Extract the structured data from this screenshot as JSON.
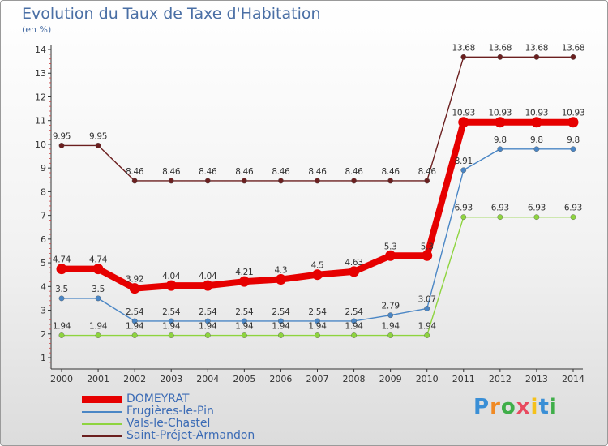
{
  "title": "Evolution du Taux de Taxe d'Habitation",
  "subtitle": "(en %)",
  "logo": {
    "letters": [
      "P",
      "r",
      "o",
      "x",
      "i",
      "t",
      "i"
    ],
    "colors": [
      "#3a8fd6",
      "#f08a24",
      "#3fae49",
      "#e84a5f",
      "#f5c11a",
      "#3a8fd6",
      "#3fae49"
    ]
  },
  "chart_data": {
    "type": "line",
    "title": "Evolution du Taux de Taxe d'Habitation",
    "ylabel": "(en %)",
    "x": [
      2000,
      2001,
      2002,
      2003,
      2004,
      2005,
      2006,
      2007,
      2008,
      2009,
      2010,
      2011,
      2012,
      2013,
      2014
    ],
    "ylim": [
      1,
      14
    ],
    "yticks": [
      1,
      2,
      3,
      4,
      5,
      6,
      7,
      8,
      9,
      10,
      11,
      12,
      13,
      14
    ],
    "grid": false,
    "legend": "bottom-left",
    "series": [
      {
        "name": "DOMEYRAT",
        "color": "#e60000",
        "emphasis": true,
        "values": [
          4.74,
          4.74,
          3.92,
          4.04,
          4.04,
          4.21,
          4.3,
          4.5,
          4.63,
          5.3,
          5.3,
          10.93,
          10.93,
          10.93,
          10.93
        ],
        "labels": [
          "4.74",
          "4.74",
          "3.92",
          "4.04",
          "4.04",
          "4.21",
          "4.3",
          "4.5",
          "4.63",
          "5.3",
          "5.3",
          "10.93",
          "10.93",
          "10.93",
          "10.93"
        ]
      },
      {
        "name": "Frugières-le-Pin",
        "color": "#4a86c5",
        "emphasis": false,
        "values": [
          3.5,
          3.5,
          2.54,
          2.54,
          2.54,
          2.54,
          2.54,
          2.54,
          2.54,
          2.79,
          3.07,
          8.91,
          9.8,
          9.8,
          9.8
        ],
        "labels": [
          "3.5",
          "3.5",
          "2.54",
          "2.54",
          "2.54",
          "2.54",
          "2.54",
          "2.54",
          "2.54",
          "2.79",
          "3.07",
          "8.91",
          "9.8",
          "9.8",
          "9.8"
        ]
      },
      {
        "name": "Vals-le-Chastel",
        "color": "#8ed43f",
        "emphasis": false,
        "values": [
          1.94,
          1.94,
          1.94,
          1.94,
          1.94,
          1.94,
          1.94,
          1.94,
          1.94,
          1.94,
          1.94,
          6.93,
          6.93,
          6.93,
          6.93
        ],
        "labels": [
          "1.94",
          "1.94",
          "1.94",
          "1.94",
          "1.94",
          "1.94",
          "1.94",
          "1.94",
          "1.94",
          "1.94",
          "1.94",
          "6.93",
          "6.93",
          "6.93",
          "6.93"
        ]
      },
      {
        "name": "Saint-Préjet-Armandon",
        "color": "#6b1f1f",
        "emphasis": false,
        "values": [
          9.95,
          9.95,
          8.46,
          8.46,
          8.46,
          8.46,
          8.46,
          8.46,
          8.46,
          8.46,
          8.46,
          13.68,
          13.68,
          13.68,
          13.68
        ],
        "labels": [
          "9.95",
          "9.95",
          "8.46",
          "8.46",
          "8.46",
          "8.46",
          "8.46",
          "8.46",
          "8.46",
          "8.46",
          "8.46",
          "13.68",
          "13.68",
          "13.68",
          "13.68"
        ]
      }
    ]
  }
}
